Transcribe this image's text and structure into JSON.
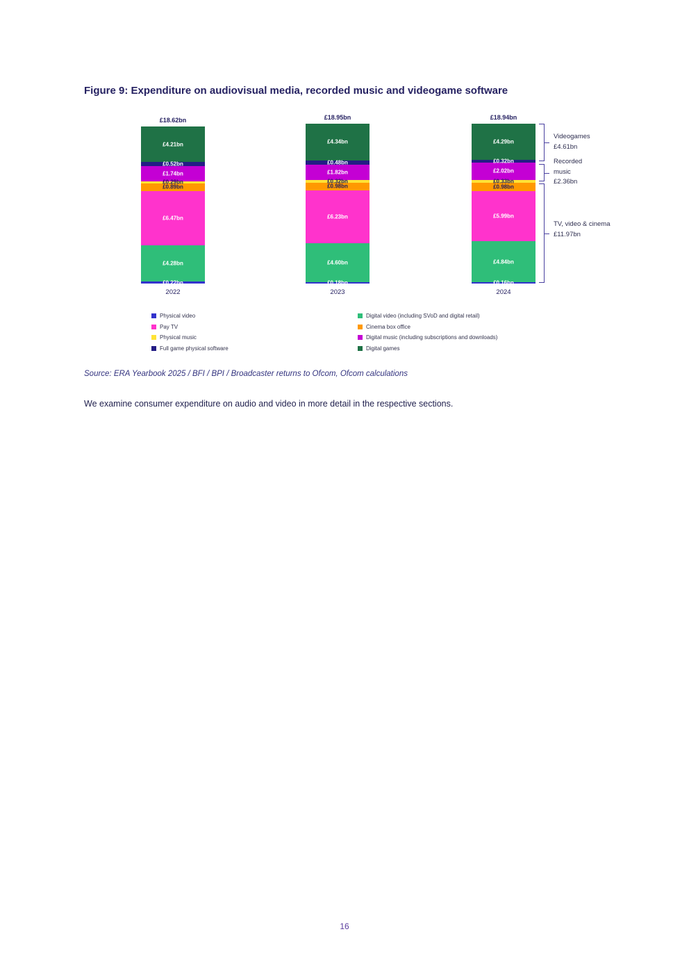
{
  "page": {
    "title": "Figure 9: Expenditure on audiovisual media, recorded music and videogame software",
    "source_line": "Source: ERA Yearbook 2025 / BFI / BPI / Broadcaster returns to Ofcom, Ofcom calculations",
    "body_text": "We examine consumer expenditure on audio and video in more detail in the respective sections.",
    "page_number": "16"
  },
  "chart_data": {
    "type": "bar",
    "variant": "stacked-column",
    "unit": "GBP billions",
    "title": "Expenditure on audiovisual media, recorded music and videogame software",
    "categories": [
      "2022",
      "2023",
      "2024"
    ],
    "totals": [
      "£18.62bn",
      "£18.95bn",
      "£18.94bn"
    ],
    "axis": {
      "y_axis_visible": false,
      "gridlines": false,
      "x_labels_visible": true
    },
    "series": [
      {
        "name": "Physical video",
        "color": "#3333cc",
        "label_color": "#ffffff",
        "values": [
          0.22,
          0.18,
          0.16
        ],
        "labels": [
          "£0.22bn",
          "£0.18bn",
          "£0.16bn"
        ]
      },
      {
        "name": "Digital video (including SVoD and digital retail)",
        "color": "#2fbe79",
        "label_color": "#ffffff",
        "values": [
          4.28,
          4.6,
          4.84
        ],
        "labels": [
          "£4.28bn",
          "£4.60bn",
          "£4.84bn"
        ]
      },
      {
        "name": "Pay TV",
        "color": "#ff33cc",
        "label_color": "#ffffff",
        "values": [
          6.47,
          6.23,
          5.99
        ],
        "labels": [
          "£6.47bn",
          "£6.23bn",
          "£5.99bn"
        ]
      },
      {
        "name": "Cinema box office",
        "color": "#ff9900",
        "label_color": "#1f1a5e",
        "values": [
          0.89,
          0.98,
          0.98
        ],
        "labels": [
          "£0.89bn",
          "£0.98bn",
          "£0.98bn"
        ]
      },
      {
        "name": "Physical music",
        "color": "#ffe336",
        "label_color": "#1f1a5e",
        "values": [
          0.29,
          0.32,
          0.33
        ],
        "labels": [
          "£0.29bn",
          "£0.32bn",
          "£0.33bn"
        ]
      },
      {
        "name": "Digital music (including subscriptions and downloads)",
        "color": "#c400d4",
        "label_color": "#ffffff",
        "values": [
          1.74,
          1.82,
          2.02
        ],
        "labels": [
          "£1.74bn",
          "£1.82bn",
          "£2.02bn"
        ]
      },
      {
        "name": "Full game physical software",
        "color": "#241d85",
        "label_color": "#ffffff",
        "values": [
          0.52,
          0.48,
          0.32
        ],
        "labels": [
          "£0.52bn",
          "£0.48bn",
          "£0.32bn"
        ]
      },
      {
        "name": "Digital games",
        "color": "#1f7246",
        "label_color": "#ffffff",
        "values": [
          4.21,
          4.34,
          4.29
        ],
        "labels": [
          "£4.21bn",
          "£4.34bn",
          "£4.29bn"
        ]
      }
    ],
    "legend": {
      "left": [
        0,
        2,
        4,
        6
      ],
      "right": [
        1,
        3,
        5,
        7
      ]
    },
    "annotations": [
      {
        "label": "Videogames",
        "value": "£4.61bn",
        "spans_series": [
          "Digital games",
          "Full game physical software"
        ]
      },
      {
        "label": "Recorded music",
        "value": "£2.36bn",
        "spans_series": [
          "Digital music (including subscriptions and downloads)",
          "Physical music"
        ]
      },
      {
        "label": "TV, video & cinema",
        "value": "£11.97bn",
        "spans_series": [
          "Cinema box office",
          "Pay TV",
          "Digital video (including SVoD and digital retail)",
          "Physical video"
        ]
      }
    ]
  }
}
